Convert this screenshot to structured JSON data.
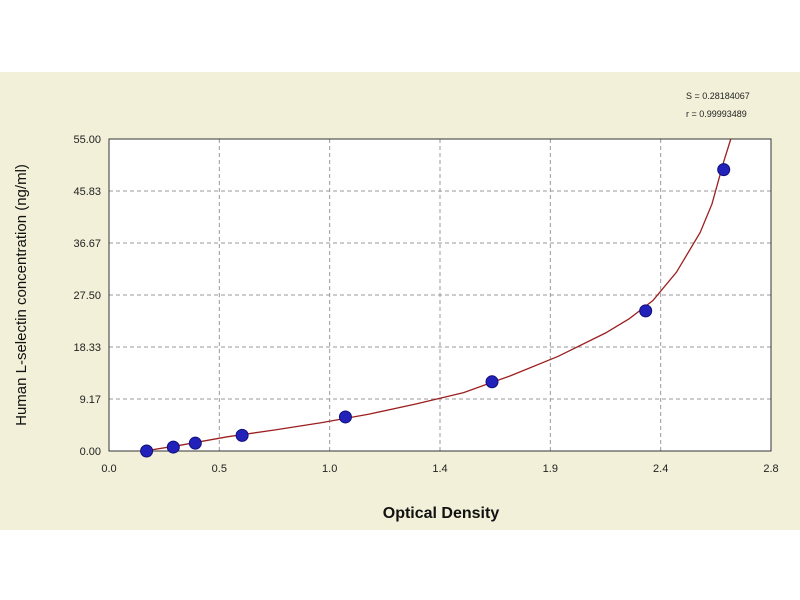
{
  "chart_data": {
    "type": "scatter",
    "title": "",
    "xlabel": "Optical Density",
    "ylabel": "Human L-selectin concentration (ng/ml)",
    "xlim": [
      0.0,
      2.8
    ],
    "ylim": [
      0.0,
      55.0
    ],
    "x_ticks": [
      "0.0",
      "0.5",
      "1.0",
      "1.4",
      "1.9",
      "2.4",
      "2.8"
    ],
    "y_ticks": [
      "0.00",
      "9.17",
      "18.33",
      "27.50",
      "36.67",
      "45.83",
      "55.00"
    ],
    "grid": true,
    "stats": [
      "S = 0.28184067",
      "r = 0.99993489"
    ],
    "colors": {
      "points": "#2222bb",
      "curve": "#9b1f1f",
      "background": "#f2f0d8"
    },
    "series": [
      {
        "type": "scatter",
        "x": [
          0.159,
          0.272,
          0.365,
          0.563,
          1.0,
          1.62,
          2.27,
          2.6
        ],
        "y": [
          0.0,
          0.69,
          1.38,
          2.75,
          6.0,
          12.2,
          24.7,
          49.6
        ]
      }
    ],
    "fit_curve": {
      "x": [
        0.15,
        0.3,
        0.5,
        0.7,
        0.9,
        1.1,
        1.3,
        1.5,
        1.7,
        1.9,
        2.1,
        2.2,
        2.3,
        2.4,
        2.5,
        2.55,
        2.6,
        2.63
      ],
      "y": [
        0.0,
        1.0,
        2.5,
        3.7,
        5.0,
        6.5,
        8.3,
        10.3,
        13.3,
        16.7,
        20.8,
        23.3,
        26.5,
        31.5,
        38.5,
        43.5,
        51.0,
        55.0
      ]
    }
  }
}
